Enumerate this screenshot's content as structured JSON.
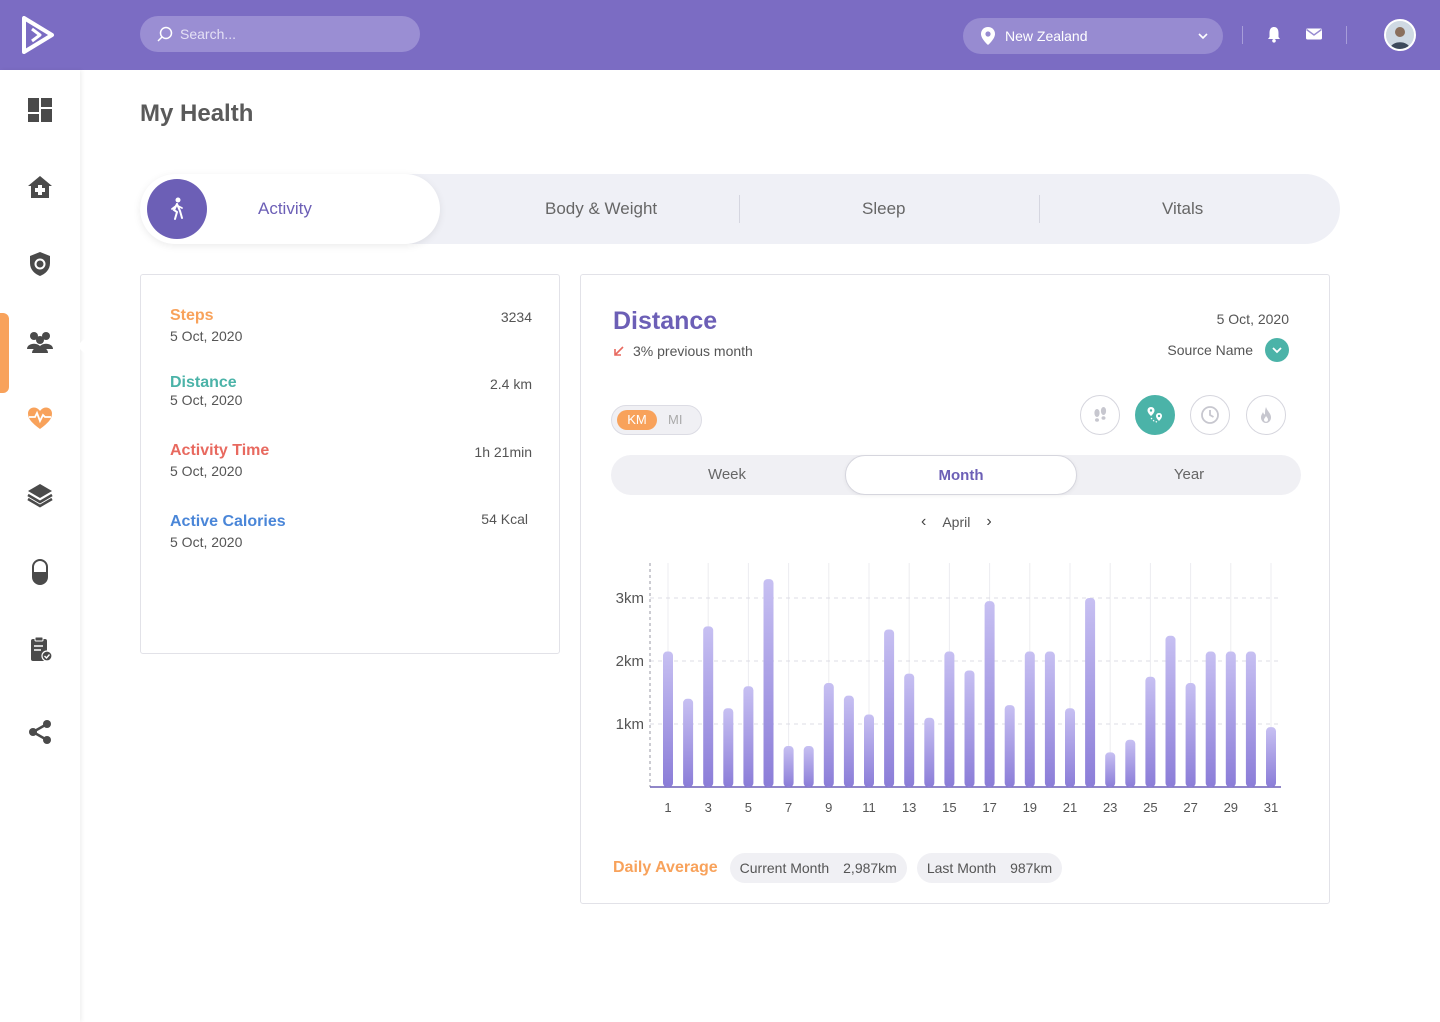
{
  "header": {
    "search_placeholder": "Search...",
    "location": "New Zealand",
    "colors": {
      "bar": "#7b6cc3",
      "accent_orange": "#f8a25b",
      "teal": "#4bb3a8",
      "purple": "#6c5fb6"
    }
  },
  "sidebar": {
    "items": [
      {
        "icon": "dashboard-icon"
      },
      {
        "icon": "hospital-icon"
      },
      {
        "icon": "shield-icon"
      },
      {
        "icon": "users-icon"
      },
      {
        "icon": "heart-pulse-icon",
        "active": true
      },
      {
        "icon": "layers-icon"
      },
      {
        "icon": "pill-icon"
      },
      {
        "icon": "clipboard-icon"
      },
      {
        "icon": "share-icon"
      }
    ]
  },
  "page": {
    "title": "My Health"
  },
  "tabs": [
    {
      "label": "Activity",
      "active": true
    },
    {
      "label": "Body & Weight"
    },
    {
      "label": "Sleep"
    },
    {
      "label": "Vitals"
    }
  ],
  "summary": [
    {
      "name": "Steps",
      "date": "5 Oct, 2020",
      "value": "3234",
      "color": "#f8a25b"
    },
    {
      "name": "Distance",
      "date": "5 Oct, 2020",
      "value": "2.4 km",
      "color": "#4bb3a8"
    },
    {
      "name": "Activity Time",
      "date": "5 Oct, 2020",
      "value": "1h 21min",
      "color": "#e8695f"
    },
    {
      "name": "Active Calories",
      "date": "5 Oct, 2020",
      "value": "54 Kcal",
      "color": "#4a86d8"
    }
  ],
  "distance": {
    "title": "Distance",
    "trend": "3% previous month",
    "date": "5 Oct, 2020",
    "source_label": "Source Name",
    "units": {
      "km": "KM",
      "mi": "MI",
      "selected": "KM"
    },
    "metric_icons": [
      "footsteps-icon",
      "route-icon",
      "clock-icon",
      "flame-icon"
    ],
    "periods": {
      "week": "Week",
      "month": "Month",
      "year": "Year",
      "selected": "Month"
    },
    "month": "April",
    "daily_average": {
      "label": "Daily Average",
      "current_label": "Current Month",
      "current_value": "2,987km",
      "last_label": "Last Month",
      "last_value": "987km"
    }
  },
  "chart_data": {
    "type": "bar",
    "title": "",
    "xlabel": "",
    "ylabel": "",
    "ylim": [
      0,
      3.5
    ],
    "y_ticks": [
      {
        "value": 1,
        "label": "1km"
      },
      {
        "value": 2,
        "label": "2km"
      },
      {
        "value": 3,
        "label": "3km"
      }
    ],
    "x_tick_labels": [
      "1",
      "3",
      "5",
      "7",
      "9",
      "11",
      "13",
      "15",
      "17",
      "19",
      "21",
      "23",
      "25",
      "27",
      "29",
      "31"
    ],
    "categories": [
      1,
      2,
      3,
      4,
      5,
      6,
      7,
      8,
      9,
      10,
      11,
      12,
      13,
      14,
      15,
      16,
      17,
      18,
      19,
      20,
      21,
      22,
      23,
      24,
      25,
      26,
      27,
      28,
      29,
      30,
      31
    ],
    "values": [
      2.15,
      1.4,
      2.55,
      1.25,
      1.6,
      3.3,
      0.65,
      0.65,
      1.65,
      1.45,
      1.15,
      2.5,
      1.8,
      1.1,
      2.15,
      1.85,
      2.95,
      1.3,
      2.15,
      2.15,
      1.25,
      3.0,
      0.55,
      0.75,
      1.75,
      2.4,
      1.65,
      2.15,
      2.15,
      2.15,
      0.95
    ],
    "grid": true,
    "bar_color": "#9c8fe0"
  }
}
